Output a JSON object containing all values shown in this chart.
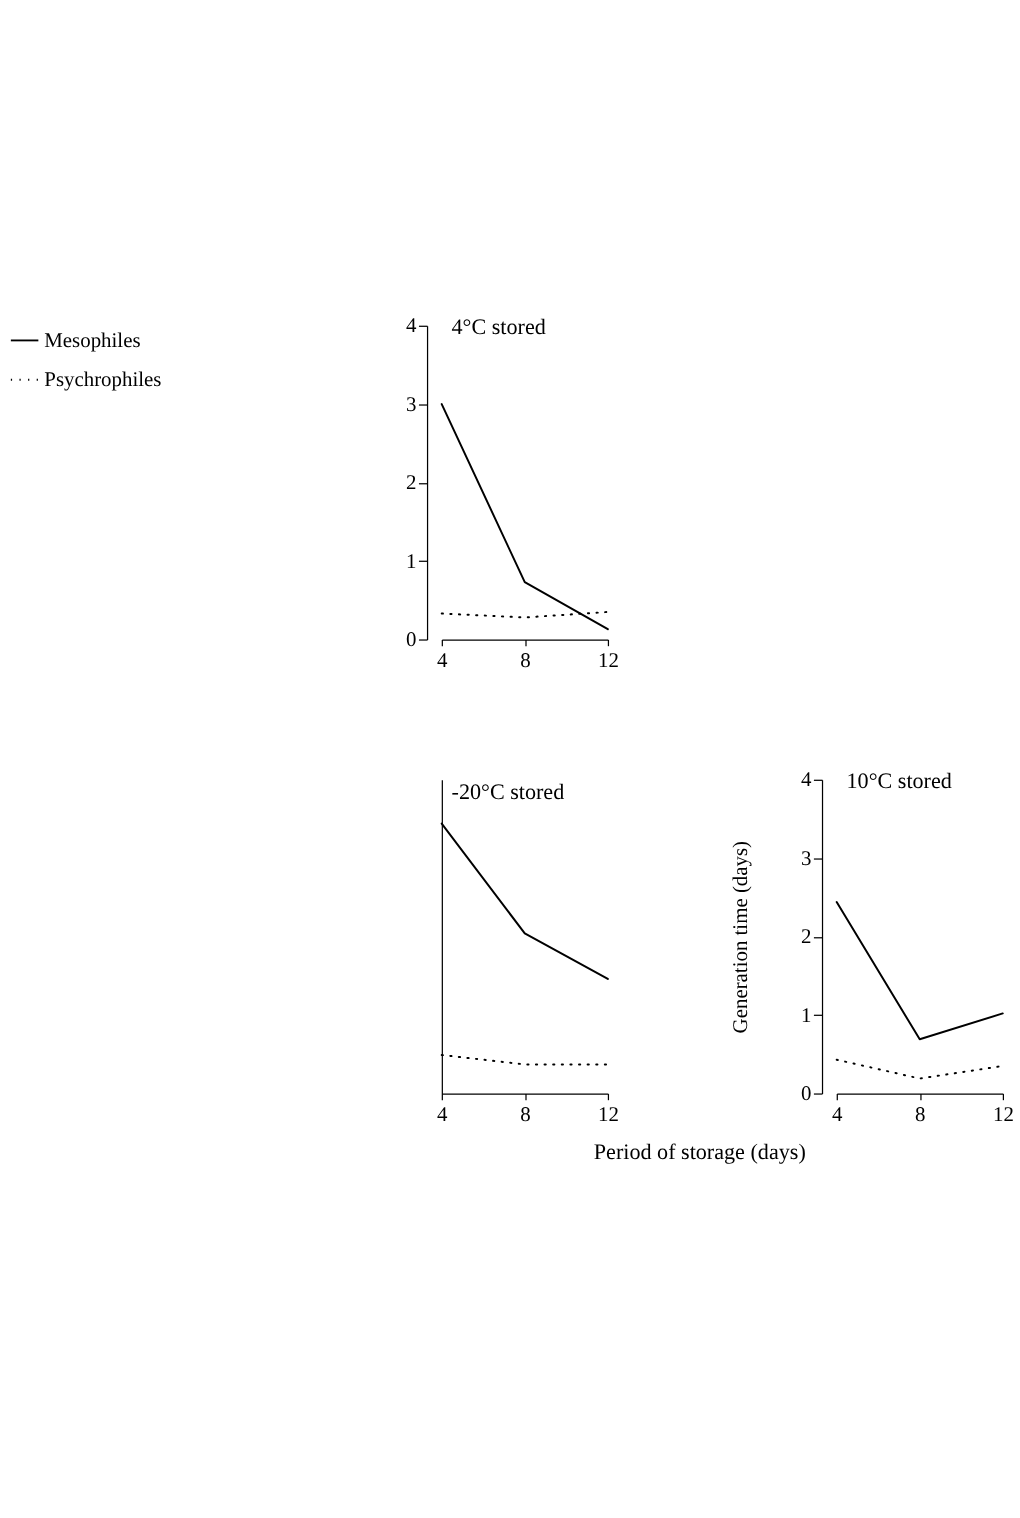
{
  "chart_data": [
    {
      "type": "line",
      "title": "4°C stored",
      "x": [
        4,
        8,
        12
      ],
      "xlim": [
        4,
        12
      ],
      "xticks": [
        4,
        8,
        12
      ],
      "ylim": [
        0,
        4
      ],
      "yticks": [
        0,
        1,
        2,
        3,
        4
      ],
      "grid": false,
      "legend": "left",
      "series": [
        {
          "name": "Mesophiles",
          "color": "#000000",
          "line_style": "solid",
          "values": [
            3.0,
            0.73,
            0.13
          ]
        },
        {
          "name": "Psychrophiles",
          "color": "#000000",
          "line_style": "dotted",
          "values": [
            0.33,
            0.28,
            0.35
          ]
        }
      ]
    },
    {
      "type": "line",
      "title": "-20°C stored",
      "x": [
        4,
        8,
        12
      ],
      "xlim": [
        4,
        12
      ],
      "xticks": [
        4,
        8,
        12
      ],
      "ylim": [
        0,
        4
      ],
      "tick_labels": "x",
      "grid": false,
      "series": [
        {
          "color": "#000000",
          "line_style": "solid",
          "values": [
            3.44,
            2.04,
            1.46
          ]
        },
        {
          "color": "#000000",
          "line_style": "dotted",
          "values": [
            0.49,
            0.37,
            0.37
          ]
        }
      ]
    },
    {
      "type": "line",
      "title": "10°C stored",
      "x": [
        4,
        8,
        12
      ],
      "xlim": [
        4,
        12
      ],
      "xticks": [
        4,
        8,
        12
      ],
      "ylim": [
        0,
        4
      ],
      "yticks": [
        0,
        1,
        2,
        3,
        4
      ],
      "grid": false,
      "ylabel": "Generation time (days)",
      "xlabel": "Period of storage (days)",
      "series": [
        {
          "color": "#000000",
          "line_style": "solid",
          "values": [
            2.44,
            0.69,
            1.02
          ]
        },
        {
          "color": "#000000",
          "line_style": "dotted",
          "values": [
            0.43,
            0.19,
            0.35
          ]
        }
      ]
    }
  ]
}
